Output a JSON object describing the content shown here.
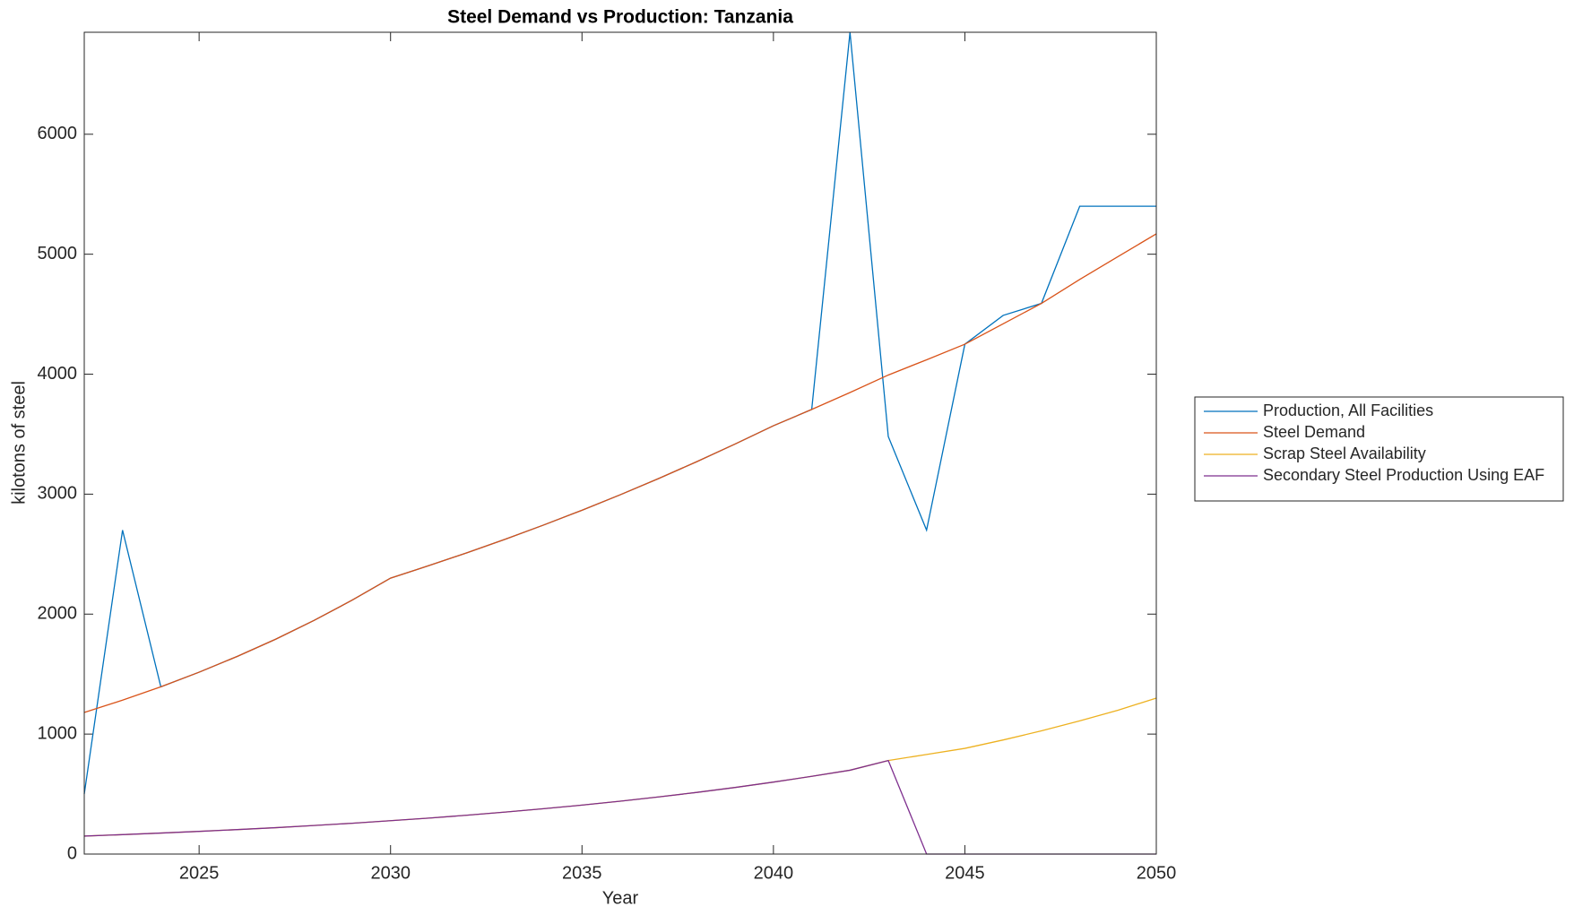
{
  "chart_data": {
    "type": "line",
    "title": "Steel Demand vs Production: Tanzania",
    "x_label": "Year",
    "y_label": "kilotons of steel",
    "x": [
      2022,
      2023,
      2024,
      2025,
      2026,
      2027,
      2028,
      2029,
      2030,
      2031,
      2032,
      2033,
      2034,
      2035,
      2036,
      2037,
      2038,
      2039,
      2040,
      2041,
      2042,
      2043,
      2044,
      2045,
      2046,
      2047,
      2048,
      2049,
      2050
    ],
    "series": [
      {
        "name": "Production, All Facilities",
        "color": "#0072BD",
        "values": [
          500,
          2700,
          1394,
          1516,
          1648,
          1791,
          1947,
          2117,
          2300,
          2404,
          2512,
          2625,
          2743,
          2866,
          2995,
          3130,
          3271,
          3418,
          3570,
          3706,
          6850,
          3480,
          2700,
          4250,
          4490,
          4590,
          5400,
          5400,
          5400
        ]
      },
      {
        "name": "Steel Demand",
        "color": "#D95319",
        "values": [
          1180,
          1283,
          1394,
          1516,
          1648,
          1791,
          1947,
          2117,
          2300,
          2404,
          2512,
          2625,
          2743,
          2866,
          2995,
          3130,
          3271,
          3418,
          3570,
          3706,
          3847,
          3993,
          4120,
          4250,
          4420,
          4590,
          4790,
          4980,
          5170
        ]
      },
      {
        "name": "Scrap Steel Availability",
        "color": "#EDB120",
        "values": [
          150,
          162,
          175,
          189,
          204,
          220,
          238,
          257,
          278,
          300,
          324,
          350,
          378,
          408,
          441,
          476,
          514,
          555,
          600,
          648,
          699,
          780,
          830,
          881,
          951,
          1027,
          1110,
          1199,
          1300
        ]
      },
      {
        "name": "Secondary Steel Production Using EAF",
        "color": "#7E2F8E",
        "values": [
          150,
          162,
          175,
          189,
          204,
          220,
          238,
          257,
          278,
          300,
          324,
          350,
          378,
          408,
          441,
          476,
          514,
          555,
          600,
          648,
          699,
          780,
          0,
          0,
          0,
          0,
          0,
          0,
          0
        ]
      }
    ],
    "xlim": [
      2022,
      2050
    ],
    "xticks": [
      2025,
      2030,
      2035,
      2040,
      2045,
      2050
    ],
    "ylim": [
      0,
      6850
    ],
    "yticks": [
      0,
      1000,
      2000,
      3000,
      4000,
      5000,
      6000
    ],
    "legend": "outside-right"
  }
}
